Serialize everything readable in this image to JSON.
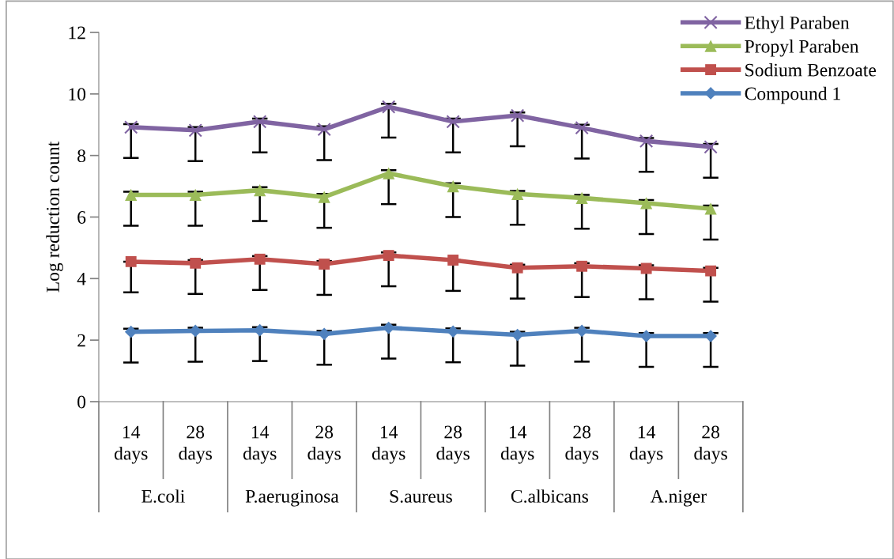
{
  "chart_data": {
    "type": "line",
    "ylabel": "Log reduction count",
    "categories": [
      "14 days",
      "28 days",
      "14 days",
      "28 days",
      "14 days",
      "28 days",
      "14 days",
      "28 days",
      "14 days",
      "28 days"
    ],
    "annotations": [
      "E.coli",
      "P.aeruginosa",
      "S.aureus",
      "C.albicans",
      "A.niger"
    ],
    "ylim": [
      0,
      12
    ],
    "yticks": [
      0,
      2,
      4,
      6,
      8,
      10,
      12
    ],
    "grid": false,
    "legend": "top right",
    "line_style": "solid",
    "series": [
      {
        "name": "Ethyl Paraben",
        "color": "#8064a2",
        "marker": "cross",
        "values": [
          8.92,
          8.82,
          9.1,
          8.85,
          9.58,
          9.1,
          9.3,
          8.9,
          8.47,
          8.28
        ],
        "errors": [
          [
            7.92,
            9.02
          ],
          [
            7.82,
            8.92
          ],
          [
            8.1,
            9.2
          ],
          [
            7.85,
            8.95
          ],
          [
            8.58,
            9.68
          ],
          [
            8.1,
            9.2
          ],
          [
            8.3,
            9.4
          ],
          [
            7.9,
            9.0
          ],
          [
            7.47,
            8.57
          ],
          [
            7.28,
            8.38
          ]
        ]
      },
      {
        "name": "Propyl Paraben",
        "color": "#9bbb59",
        "marker": "triangle",
        "values": [
          6.72,
          6.72,
          6.87,
          6.65,
          7.42,
          7.0,
          6.75,
          6.62,
          6.45,
          6.27
        ],
        "errors": [
          [
            5.72,
            6.82
          ],
          [
            5.72,
            6.82
          ],
          [
            5.87,
            6.97
          ],
          [
            5.65,
            6.75
          ],
          [
            6.42,
            7.52
          ],
          [
            6.0,
            7.1
          ],
          [
            5.75,
            6.85
          ],
          [
            5.62,
            6.72
          ],
          [
            5.45,
            6.55
          ],
          [
            5.27,
            6.37
          ]
        ]
      },
      {
        "name": "Sodium Benzoate",
        "color": "#c0504d",
        "marker": "square",
        "values": [
          4.55,
          4.5,
          4.63,
          4.47,
          4.75,
          4.6,
          4.35,
          4.4,
          4.33,
          4.25
        ],
        "errors": [
          [
            3.55,
            4.55
          ],
          [
            3.5,
            4.6
          ],
          [
            3.63,
            4.73
          ],
          [
            3.47,
            4.57
          ],
          [
            3.75,
            4.85
          ],
          [
            3.6,
            4.6
          ],
          [
            3.35,
            4.45
          ],
          [
            3.4,
            4.5
          ],
          [
            3.33,
            4.43
          ],
          [
            3.25,
            4.35
          ]
        ]
      },
      {
        "name": "Compound 1",
        "color": "#4f81bd",
        "marker": "diamond",
        "values": [
          2.27,
          2.3,
          2.32,
          2.2,
          2.4,
          2.28,
          2.17,
          2.3,
          2.13,
          2.13
        ],
        "errors": [
          [
            1.27,
            2.37
          ],
          [
            1.3,
            2.4
          ],
          [
            1.32,
            2.42
          ],
          [
            1.2,
            2.3
          ],
          [
            1.4,
            2.5
          ],
          [
            1.28,
            2.38
          ],
          [
            1.17,
            2.27
          ],
          [
            1.3,
            2.4
          ],
          [
            1.13,
            2.23
          ],
          [
            1.13,
            2.23
          ]
        ]
      }
    ]
  }
}
